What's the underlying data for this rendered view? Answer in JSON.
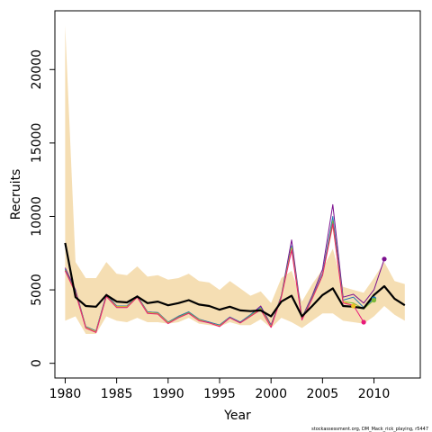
{
  "chart_data": {
    "type": "line",
    "xlabel": "Year",
    "ylabel": "Recruits",
    "xlim": [
      1979,
      2014.5
    ],
    "ylim": [
      -1000,
      24000
    ],
    "x_ticks": [
      1980,
      1985,
      1990,
      1995,
      2000,
      2005,
      2010
    ],
    "y_ticks": [
      0,
      5000,
      10000,
      15000,
      20000
    ],
    "grid": false,
    "legend": "none",
    "footnote": "stockassessment.org, DM_Mack_rick_playing, r5447",
    "band_color": "#f5deb3",
    "x": [
      1980,
      1981,
      1982,
      1983,
      1984,
      1985,
      1986,
      1987,
      1988,
      1989,
      1990,
      1991,
      1992,
      1993,
      1994,
      1995,
      1996,
      1997,
      1998,
      1999,
      2000,
      2001,
      2002,
      2003,
      2004,
      2005,
      2006,
      2007,
      2008,
      2009,
      2010,
      2011,
      2012,
      2013
    ],
    "band_upper": [
      23000,
      6900,
      5800,
      5800,
      6900,
      6100,
      6000,
      6600,
      5900,
      6000,
      5700,
      5800,
      6100,
      5600,
      5500,
      5000,
      5600,
      5100,
      4600,
      4900,
      4100,
      5800,
      6300,
      4200,
      5400,
      6400,
      7800,
      5200,
      5000,
      4800,
      5800,
      6900,
      5600,
      5400
    ],
    "band_lower": [
      2900,
      3200,
      2000,
      2000,
      3200,
      2900,
      2800,
      3100,
      2800,
      2800,
      2700,
      2800,
      3100,
      2700,
      2600,
      2500,
      2800,
      2600,
      2600,
      3000,
      2400,
      3100,
      2800,
      2400,
      2900,
      3400,
      3400,
      2900,
      2800,
      2700,
      3200,
      3900,
      3300,
      2900
    ],
    "series": [
      {
        "color": "#000000",
        "role": "estimate",
        "x": [
          1980,
          1981,
          1982,
          1983,
          1984,
          1985,
          1986,
          1987,
          1988,
          1989,
          1990,
          1991,
          1992,
          1993,
          1994,
          1995,
          1996,
          1997,
          1998,
          1999,
          2000,
          2001,
          2002,
          2003,
          2004,
          2005,
          2006,
          2007,
          2008,
          2009,
          2010,
          2011,
          2012,
          2013
        ],
        "values": [
          8200,
          4500,
          3900,
          3850,
          4650,
          4200,
          4150,
          4550,
          4100,
          4200,
          3950,
          4100,
          4300,
          4000,
          3900,
          3650,
          3850,
          3600,
          3550,
          3600,
          3200,
          4200,
          4600,
          3200,
          3900,
          4650,
          5100,
          3900,
          3850,
          3750,
          4650,
          5250,
          4400,
          3950
        ]
      },
      {
        "color": "#7b0f8e",
        "role": "retro-1",
        "x": [
          1980,
          1981,
          1982,
          1983,
          1984,
          1985,
          1986,
          1987,
          1988,
          1989,
          1990,
          1991,
          1992,
          1993,
          1994,
          1995,
          1996,
          1997,
          1998,
          1999,
          2000,
          2001,
          2002,
          2003,
          2004,
          2005,
          2006,
          2007,
          2008,
          2009,
          2010,
          2011
        ],
        "values": [
          6500,
          5000,
          2500,
          2200,
          4700,
          3900,
          3900,
          4600,
          3500,
          3450,
          2800,
          3200,
          3500,
          3000,
          2800,
          2600,
          3150,
          2800,
          3300,
          3900,
          2600,
          4600,
          8400,
          3100,
          4600,
          6400,
          10800,
          4500,
          4700,
          4100,
          5000,
          7100
        ]
      },
      {
        "color": "#1f77b4",
        "role": "retro-2",
        "x": [
          1980,
          1981,
          1982,
          1983,
          1984,
          1985,
          1986,
          1987,
          1988,
          1989,
          1990,
          1991,
          1992,
          1993,
          1994,
          1995,
          1996,
          1997,
          1998,
          1999,
          2000,
          2001,
          2002,
          2003,
          2004,
          2005,
          2006,
          2007,
          2008,
          2009,
          2010
        ],
        "values": [
          6400,
          4900,
          2500,
          2200,
          4650,
          3900,
          3900,
          4600,
          3500,
          3450,
          2800,
          3200,
          3500,
          3000,
          2800,
          2600,
          3150,
          2800,
          3300,
          3800,
          2550,
          4600,
          8000,
          3050,
          4500,
          6100,
          10000,
          4300,
          4500,
          3800,
          4400
        ]
      },
      {
        "color": "#7cba3a",
        "role": "retro-3",
        "x": [
          1980,
          1981,
          1982,
          1983,
          1984,
          1985,
          1986,
          1987,
          1988,
          1989,
          1990,
          1991,
          1992,
          1993,
          1994,
          1995,
          1996,
          1997,
          1998,
          1999,
          2000,
          2001,
          2002,
          2003,
          2004,
          2005,
          2006,
          2007,
          2008,
          2009,
          2010
        ],
        "values": [
          6350,
          4850,
          2450,
          2150,
          4600,
          3850,
          3850,
          4550,
          3450,
          3400,
          2750,
          3150,
          3450,
          2950,
          2750,
          2550,
          3100,
          2750,
          3250,
          3750,
          2500,
          4550,
          7900,
          3000,
          4450,
          6000,
          9700,
          4200,
          4100,
          3700,
          4300
        ]
      },
      {
        "color": "#f0c020",
        "role": "retro-4",
        "x": [
          1980,
          1981,
          1982,
          1983,
          1984,
          1985,
          1986,
          1987,
          1988,
          1989,
          1990,
          1991,
          1992,
          1993,
          1994,
          1995,
          1996,
          1997,
          1998,
          1999,
          2000,
          2001,
          2002,
          2003,
          2004,
          2005,
          2006,
          2007,
          2008
        ],
        "values": [
          6300,
          4800,
          2450,
          2150,
          4550,
          3850,
          3850,
          4500,
          3450,
          3400,
          2750,
          3100,
          3400,
          2950,
          2750,
          2550,
          3100,
          2750,
          3200,
          3700,
          2500,
          4500,
          7800,
          3000,
          4400,
          6000,
          9400,
          4200,
          3900
        ]
      },
      {
        "color": "#e8197a",
        "role": "retro-5",
        "x": [
          1980,
          1981,
          1982,
          1983,
          1984,
          1985,
          1986,
          1987,
          1988,
          1989,
          1990,
          1991,
          1992,
          1993,
          1994,
          1995,
          1996,
          1997,
          1998,
          1999,
          2000,
          2001,
          2002,
          2003,
          2004,
          2005,
          2006,
          2007,
          2008,
          2009
        ],
        "values": [
          6300,
          4800,
          2400,
          2100,
          4550,
          3800,
          3800,
          4500,
          3400,
          3350,
          2700,
          3100,
          3400,
          2900,
          2750,
          2500,
          3100,
          2750,
          3200,
          3650,
          2450,
          4500,
          7700,
          2950,
          4400,
          6000,
          9500,
          4100,
          3950,
          2800
        ]
      }
    ],
    "endpoints": [
      {
        "x": 2011,
        "y": 7100,
        "color": "#7b0f8e"
      },
      {
        "x": 2010,
        "y": 4400,
        "color": "#1f77b4"
      },
      {
        "x": 2010,
        "y": 4300,
        "color": "#7cba3a"
      },
      {
        "x": 2008,
        "y": 3900,
        "color": "#f0c020"
      },
      {
        "x": 2009,
        "y": 2800,
        "color": "#e8197a"
      }
    ]
  }
}
